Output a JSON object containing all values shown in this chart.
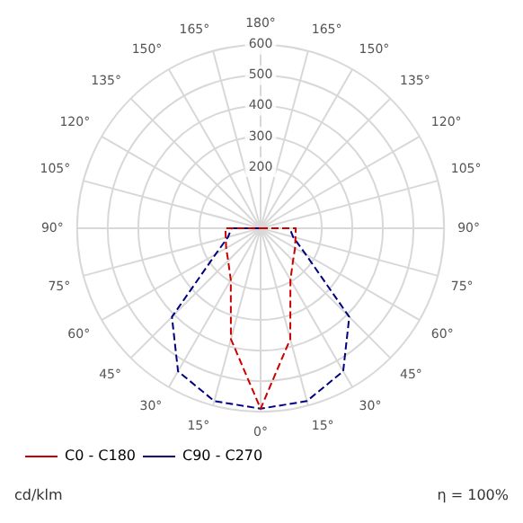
{
  "chart_data": {
    "type": "radar",
    "categories": [
      "180°",
      "165°",
      "150°",
      "135°",
      "120°",
      "105°",
      "90°",
      "75°",
      "60°",
      "45°",
      "30°",
      "15°",
      "0°",
      "15°",
      "30°",
      "45°",
      "60°",
      "75°",
      "90°",
      "105°",
      "120°",
      "135°",
      "150°",
      "165°"
    ],
    "series": [
      {
        "name": "C0 - C180",
        "color": "#cc0000",
        "line_style": "dashed",
        "values": [
          0,
          0,
          0,
          0,
          0,
          0,
          115,
          118,
          130,
          150,
          195,
          375,
          590,
          375,
          195,
          150,
          130,
          118,
          115,
          0,
          0,
          0,
          0,
          0
        ]
      },
      {
        "name": "C90 - C270",
        "color": "#000080",
        "line_style": "dashed",
        "values": [
          0,
          0,
          0,
          0,
          0,
          0,
          95,
          110,
          170,
          410,
          540,
          585,
          590,
          585,
          540,
          410,
          170,
          110,
          95,
          0,
          0,
          0,
          0,
          0
        ]
      }
    ],
    "ylim": [
      0,
      600
    ],
    "yticks": [
      200,
      300,
      400,
      500,
      600
    ],
    "grid": true,
    "legend": "bottom left",
    "marker": "none",
    "annotations": [
      "cd/klm",
      "η = 100%"
    ]
  }
}
